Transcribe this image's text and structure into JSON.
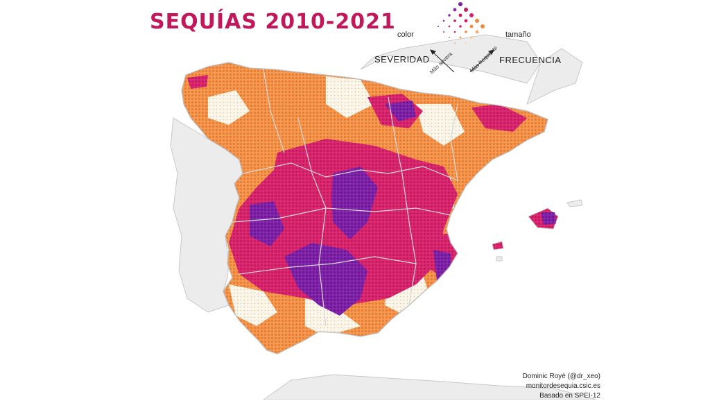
{
  "map": {
    "title": "SEQUÍAS 2010-2021",
    "legend": {
      "color_label": "color",
      "size_label": "tamaño",
      "severity_label": "SEVERIDAD",
      "frequency_label": "FRECUENCIA",
      "more_severe": "Más severa",
      "more_frequent": "Más frequente",
      "colors": [
        "#f5e6c8",
        "#f08a3c",
        "#d61f69",
        "#7a1fa2"
      ]
    },
    "credits": {
      "author": "Dominic Royé (@dr_xeo)",
      "source": "monitordesequia.csic.es",
      "basis": "Basado en SPEI-12"
    },
    "colors": {
      "title": "#c2185b",
      "land_background": "#ececec",
      "border": "#b9b9b9",
      "light": "#f5e6c8",
      "orange": "#f08a3c",
      "pink": "#d61f69",
      "purple": "#7a1fa2"
    }
  }
}
